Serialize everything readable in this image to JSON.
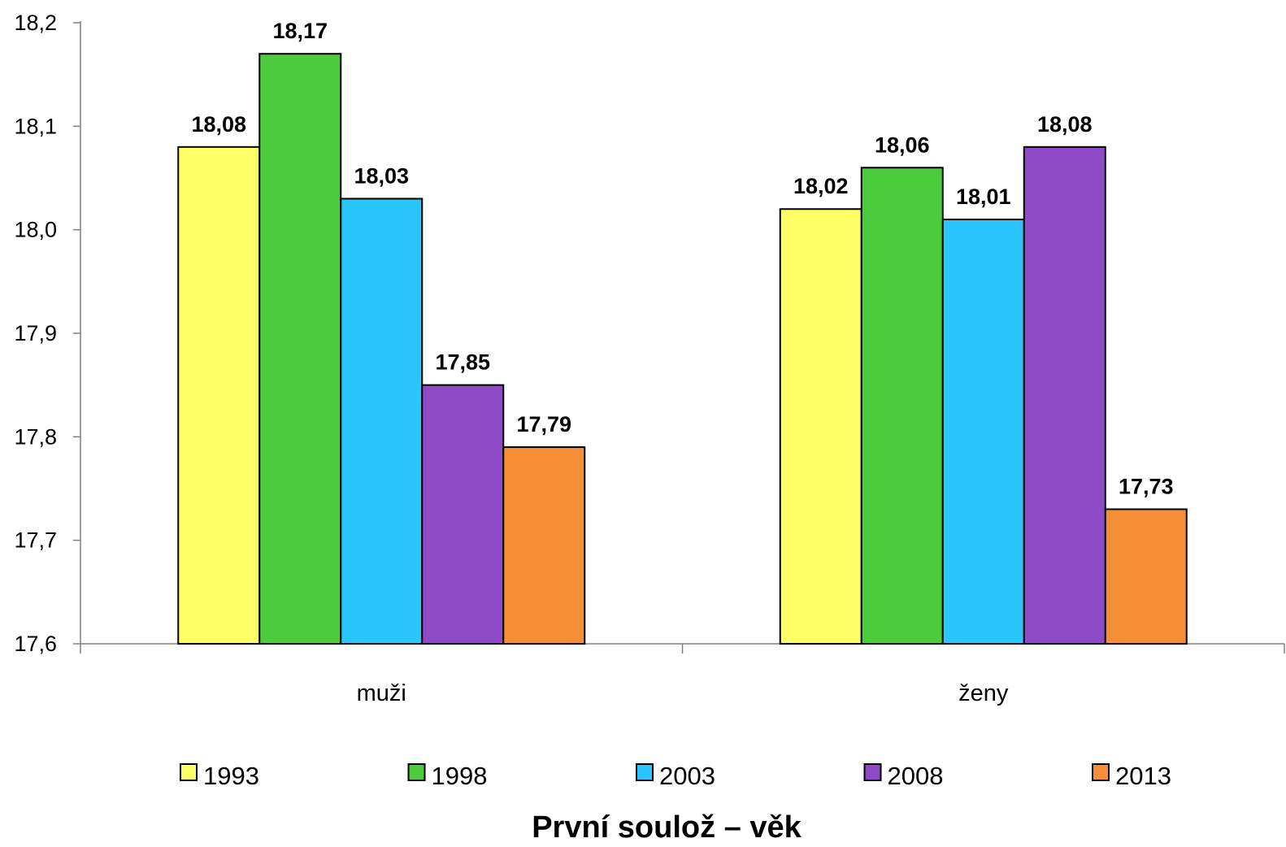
{
  "chart_data": {
    "type": "bar",
    "title": "První soulož – věk",
    "categories": [
      "muži",
      "ženy"
    ],
    "series": [
      {
        "name": "1993",
        "color": "#FFFF66",
        "values": [
          18.08,
          18.02
        ]
      },
      {
        "name": "1998",
        "color": "#4CCC3C",
        "values": [
          18.17,
          18.06
        ]
      },
      {
        "name": "2003",
        "color": "#29C5FB",
        "values": [
          18.03,
          18.01
        ]
      },
      {
        "name": "2008",
        "color": "#8E4AC7",
        "values": [
          17.85,
          18.08
        ]
      },
      {
        "name": "2013",
        "color": "#F48F38",
        "values": [
          17.79,
          17.73
        ]
      }
    ],
    "data_labels": [
      [
        "18,08",
        "18,02"
      ],
      [
        "18,17",
        "18,06"
      ],
      [
        "18,03",
        "18,01"
      ],
      [
        "17,85",
        "18,08"
      ],
      [
        "17,79",
        "17,73"
      ]
    ],
    "ylim": [
      17.6,
      18.2
    ],
    "yticks": [
      17.6,
      17.7,
      17.8,
      17.9,
      18.0,
      18.1,
      18.2
    ],
    "ytick_labels": [
      "17,6",
      "17,7",
      "17,8",
      "17,9",
      "18,0",
      "18,1",
      "18,2"
    ],
    "grid": false,
    "legend_position": "bottom",
    "xlabel": "",
    "ylabel": ""
  }
}
